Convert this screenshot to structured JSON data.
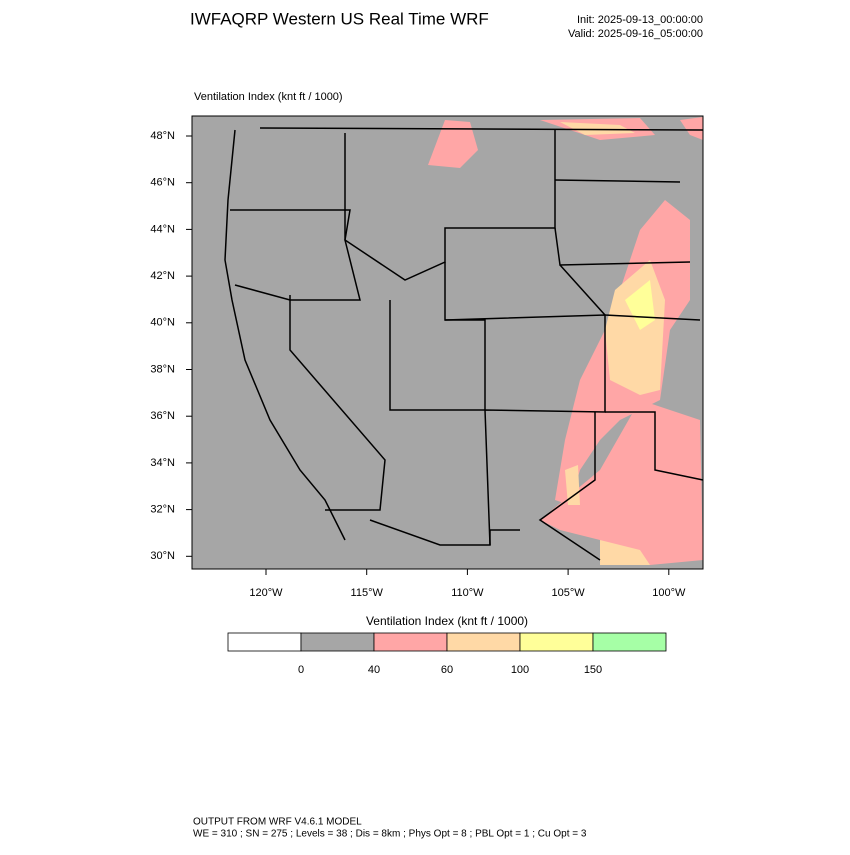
{
  "header": {
    "title": "IWFAQRP Western US Real Time WRF",
    "init": "Init: 2025-09-13_00:00:00",
    "valid": "Valid: 2025-09-16_05:00:00"
  },
  "map": {
    "subtitle": "Ventilation Index   (knt ft / 1000)",
    "lat_labels": [
      "48°N",
      "46°N",
      "44°N",
      "42°N",
      "40°N",
      "38°N",
      "36°N",
      "34°N",
      "32°N",
      "30°N"
    ],
    "lon_labels": [
      "120°W",
      "115°W",
      "110°W",
      "105°W",
      "100°W"
    ]
  },
  "colorbar": {
    "title": "Ventilation Index   (knt ft / 1000)",
    "labels": [
      0,
      40,
      60,
      100,
      150
    ],
    "colors": [
      "#ffffff",
      "#a6a6a6",
      "#ffa6a6",
      "#ffd9a6",
      "#ffff99",
      "#a6ffa6"
    ]
  },
  "footer": {
    "line1": "OUTPUT FROM WRF V4.6.1 MODEL",
    "line2": "WE = 310 ; SN = 275 ; Levels = 38 ; Dis = 8km ; Phys Opt = 8 ; PBL Opt = 1 ; Cu Opt = 3"
  }
}
